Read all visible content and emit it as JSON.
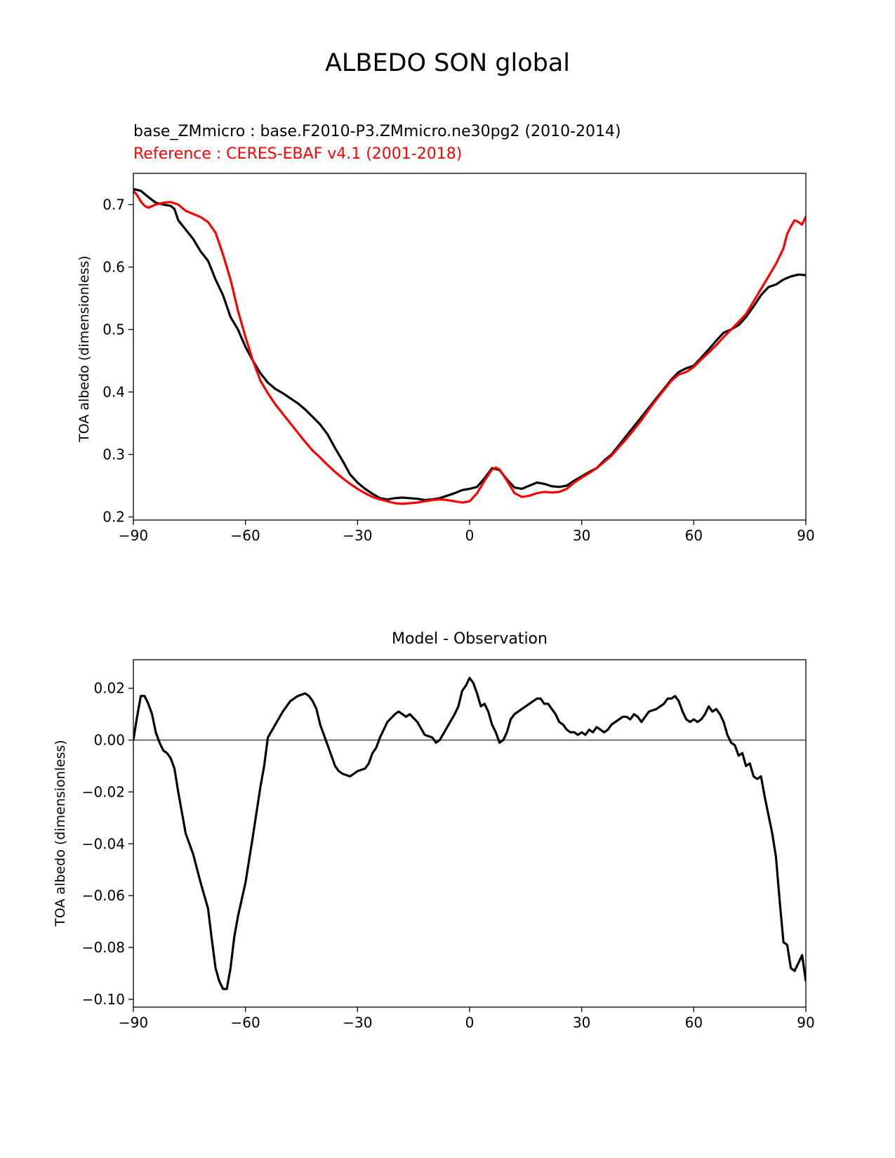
{
  "suptitle": "ALBEDO SON global",
  "top_panel": {
    "test_label": "base_ZMmicro : base.F2010-P3.ZMmicro.ne30pg2 (2010-2014)",
    "ref_label": "Reference : CERES-EBAF v4.1 (2001-2018)",
    "ylabel": "TOA albedo (dimensionless)"
  },
  "bottom_panel": {
    "title": "Model - Observation",
    "ylabel": "TOA albedo (dimensionless)"
  },
  "colors": {
    "test": "#000000",
    "reference": "#ff0000",
    "zero_line": "#808080"
  },
  "chart_data": [
    {
      "type": "line",
      "title": "",
      "xlabel": "",
      "ylabel": "TOA albedo (dimensionless)",
      "xlim": [
        -90,
        90
      ],
      "ylim": [
        0.195,
        0.75
      ],
      "xticks": [
        -90,
        -60,
        -30,
        0,
        30,
        60,
        90
      ],
      "xtick_labels": [
        "−90",
        "−60",
        "−30",
        "0",
        "30",
        "60",
        "90"
      ],
      "yticks": [
        0.2,
        0.3,
        0.4,
        0.5,
        0.6,
        0.7
      ],
      "ytick_labels": [
        "0.2",
        "0.3",
        "0.4",
        "0.5",
        "0.6",
        "0.7"
      ],
      "grid": false,
      "series": [
        {
          "color": "#000000",
          "x": [
            -90,
            -88,
            -86,
            -84,
            -82,
            -80,
            -79,
            -78,
            -76,
            -74,
            -72,
            -70,
            -68,
            -66,
            -64,
            -62,
            -60,
            -58,
            -56,
            -54,
            -52,
            -50,
            -48,
            -46,
            -44,
            -42,
            -40,
            -38,
            -36,
            -34,
            -32,
            -30,
            -28,
            -26,
            -24,
            -22,
            -20,
            -18,
            -16,
            -14,
            -12,
            -10,
            -8,
            -6,
            -4,
            -2,
            0,
            2,
            4,
            6,
            8,
            10,
            12,
            14,
            16,
            18,
            20,
            22,
            24,
            26,
            28,
            30,
            32,
            34,
            36,
            38,
            40,
            42,
            44,
            46,
            48,
            50,
            52,
            54,
            56,
            58,
            60,
            62,
            64,
            66,
            68,
            70,
            72,
            74,
            76,
            78,
            80,
            82,
            84,
            86,
            88,
            90
          ],
          "y": [
            0.725,
            0.722,
            0.712,
            0.703,
            0.7,
            0.698,
            0.693,
            0.675,
            0.66,
            0.645,
            0.625,
            0.61,
            0.58,
            0.555,
            0.52,
            0.5,
            0.472,
            0.45,
            0.43,
            0.415,
            0.405,
            0.398,
            0.39,
            0.382,
            0.372,
            0.36,
            0.348,
            0.332,
            0.31,
            0.29,
            0.268,
            0.255,
            0.245,
            0.237,
            0.23,
            0.228,
            0.23,
            0.231,
            0.23,
            0.229,
            0.227,
            0.228,
            0.23,
            0.234,
            0.238,
            0.243,
            0.245,
            0.248,
            0.262,
            0.278,
            0.275,
            0.26,
            0.247,
            0.245,
            0.25,
            0.255,
            0.253,
            0.249,
            0.248,
            0.25,
            0.258,
            0.265,
            0.272,
            0.278,
            0.29,
            0.3,
            0.315,
            0.33,
            0.345,
            0.36,
            0.375,
            0.39,
            0.405,
            0.42,
            0.432,
            0.438,
            0.442,
            0.455,
            0.468,
            0.482,
            0.495,
            0.5,
            0.507,
            0.52,
            0.537,
            0.555,
            0.568,
            0.572,
            0.58,
            0.585,
            0.588,
            0.587
          ]
        },
        {
          "color": "#ff0000",
          "x": [
            -90,
            -89,
            -88,
            -87,
            -86,
            -84,
            -82,
            -80,
            -78,
            -76,
            -74,
            -72,
            -70,
            -68,
            -66,
            -64,
            -62,
            -60,
            -58,
            -56,
            -54,
            -52,
            -50,
            -48,
            -46,
            -44,
            -42,
            -40,
            -38,
            -36,
            -34,
            -32,
            -30,
            -28,
            -26,
            -24,
            -22,
            -20,
            -18,
            -16,
            -14,
            -12,
            -10,
            -8,
            -6,
            -4,
            -2,
            0,
            2,
            4,
            6,
            7,
            8,
            10,
            12,
            14,
            16,
            18,
            20,
            22,
            24,
            26,
            28,
            30,
            32,
            34,
            36,
            38,
            40,
            42,
            44,
            46,
            48,
            50,
            52,
            54,
            56,
            58,
            60,
            62,
            64,
            66,
            68,
            70,
            72,
            74,
            76,
            78,
            80,
            82,
            84,
            85,
            86,
            87,
            88,
            89,
            90
          ],
          "y": [
            0.722,
            0.715,
            0.705,
            0.698,
            0.695,
            0.7,
            0.703,
            0.704,
            0.7,
            0.69,
            0.685,
            0.68,
            0.672,
            0.655,
            0.62,
            0.58,
            0.53,
            0.488,
            0.45,
            0.418,
            0.398,
            0.38,
            0.365,
            0.35,
            0.335,
            0.32,
            0.306,
            0.295,
            0.283,
            0.272,
            0.262,
            0.253,
            0.245,
            0.238,
            0.232,
            0.228,
            0.225,
            0.222,
            0.221,
            0.222,
            0.223,
            0.225,
            0.227,
            0.228,
            0.227,
            0.225,
            0.223,
            0.225,
            0.238,
            0.258,
            0.276,
            0.279,
            0.276,
            0.258,
            0.238,
            0.232,
            0.234,
            0.238,
            0.24,
            0.239,
            0.24,
            0.245,
            0.255,
            0.263,
            0.27,
            0.278,
            0.288,
            0.298,
            0.312,
            0.325,
            0.34,
            0.355,
            0.372,
            0.388,
            0.403,
            0.418,
            0.428,
            0.432,
            0.44,
            0.452,
            0.463,
            0.475,
            0.488,
            0.5,
            0.512,
            0.525,
            0.545,
            0.565,
            0.585,
            0.605,
            0.63,
            0.653,
            0.665,
            0.675,
            0.672,
            0.668,
            0.681
          ]
        }
      ]
    },
    {
      "type": "line",
      "title": "Model - Observation",
      "xlabel": "",
      "ylabel": "TOA albedo (dimensionless)",
      "xlim": [
        -90,
        90
      ],
      "ylim": [
        -0.103,
        0.031
      ],
      "xticks": [
        -90,
        -60,
        -30,
        0,
        30,
        60,
        90
      ],
      "xtick_labels": [
        "−90",
        "−60",
        "−30",
        "0",
        "30",
        "60",
        "90"
      ],
      "yticks": [
        0.02,
        0.0,
        -0.02,
        -0.04,
        -0.06,
        -0.08,
        -0.1
      ],
      "ytick_labels": [
        "0.02",
        "0.00",
        "−0.02",
        "−0.04",
        "−0.06",
        "−0.08",
        "−0.10"
      ],
      "grid": false,
      "hline": 0.0,
      "series": [
        {
          "color": "#000000",
          "x": [
            -90,
            -89,
            -88,
            -87,
            -86,
            -85,
            -84,
            -83,
            -82,
            -81,
            -80,
            -79,
            -78,
            -76,
            -74,
            -72,
            -70,
            -69,
            -68,
            -67,
            -66,
            -65,
            -64,
            -63,
            -62,
            -60,
            -58,
            -56,
            -55,
            -54,
            -52,
            -50,
            -48,
            -46,
            -44,
            -43,
            -42,
            -41,
            -40,
            -38,
            -36,
            -35,
            -34,
            -32,
            -31,
            -30,
            -28,
            -27,
            -26,
            -25,
            -24,
            -22,
            -20,
            -19,
            -18,
            -17,
            -16,
            -14,
            -12,
            -10,
            -9,
            -8,
            -6,
            -4,
            -3,
            -2,
            -1,
            0,
            1,
            2,
            3,
            4,
            5,
            6,
            7,
            8,
            9,
            10,
            11,
            12,
            14,
            16,
            18,
            19,
            20,
            21,
            22,
            23,
            24,
            25,
            26,
            27,
            28,
            29,
            30,
            31,
            32,
            33,
            34,
            35,
            36,
            37,
            38,
            40,
            41,
            42,
            43,
            44,
            45,
            46,
            47,
            48,
            50,
            52,
            53,
            54,
            55,
            56,
            57,
            58,
            59,
            60,
            61,
            62,
            63,
            64,
            65,
            66,
            67,
            68,
            69,
            70,
            71,
            72,
            73,
            74,
            75,
            76,
            77,
            78,
            79,
            80,
            81,
            82,
            83,
            84,
            85,
            86,
            87,
            88,
            89,
            90
          ],
          "y": [
            0.0,
            0.009,
            0.017,
            0.017,
            0.014,
            0.01,
            0.003,
            -0.001,
            -0.004,
            -0.005,
            -0.007,
            -0.011,
            -0.02,
            -0.036,
            -0.044,
            -0.055,
            -0.065,
            -0.077,
            -0.088,
            -0.093,
            -0.096,
            -0.096,
            -0.088,
            -0.076,
            -0.068,
            -0.055,
            -0.037,
            -0.018,
            -0.01,
            0.001,
            0.006,
            0.011,
            0.015,
            0.017,
            0.018,
            0.017,
            0.015,
            0.012,
            0.006,
            -0.002,
            -0.01,
            -0.012,
            -0.013,
            -0.014,
            -0.013,
            -0.012,
            -0.011,
            -0.009,
            -0.005,
            -0.003,
            0.001,
            0.007,
            0.01,
            0.011,
            0.01,
            0.009,
            0.01,
            0.007,
            0.002,
            0.001,
            -0.001,
            0.0,
            0.005,
            0.01,
            0.013,
            0.019,
            0.021,
            0.024,
            0.022,
            0.018,
            0.013,
            0.014,
            0.011,
            0.006,
            0.003,
            -0.001,
            0.0,
            0.003,
            0.008,
            0.01,
            0.012,
            0.014,
            0.016,
            0.016,
            0.014,
            0.014,
            0.012,
            0.01,
            0.007,
            0.006,
            0.004,
            0.003,
            0.003,
            0.002,
            0.003,
            0.002,
            0.004,
            0.003,
            0.005,
            0.004,
            0.003,
            0.004,
            0.006,
            0.008,
            0.009,
            0.009,
            0.008,
            0.01,
            0.009,
            0.007,
            0.009,
            0.011,
            0.012,
            0.014,
            0.016,
            0.016,
            0.017,
            0.015,
            0.011,
            0.008,
            0.007,
            0.008,
            0.007,
            0.008,
            0.01,
            0.013,
            0.011,
            0.012,
            0.01,
            0.007,
            0.002,
            -0.001,
            -0.002,
            -0.006,
            -0.005,
            -0.01,
            -0.009,
            -0.014,
            -0.015,
            -0.014,
            -0.022,
            -0.029,
            -0.036,
            -0.045,
            -0.062,
            -0.078,
            -0.079,
            -0.088,
            -0.089,
            -0.086,
            -0.083,
            -0.093
          ]
        }
      ]
    }
  ]
}
